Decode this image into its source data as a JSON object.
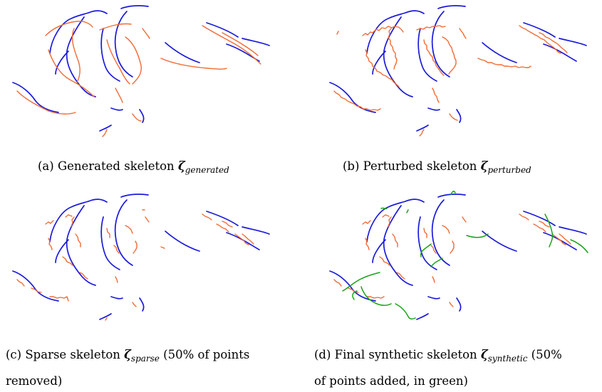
{
  "colors": {
    "reference_skeleton": "#1a1adb",
    "skeleton": "#f26a33",
    "added_points": "#1aa31a"
  },
  "panels": [
    {
      "id": "a",
      "caption_prefix": "(a) Generated skeleton ",
      "symbol": "ζ",
      "subscript": "generated",
      "caption_suffix": "",
      "caption_line2": ""
    },
    {
      "id": "b",
      "caption_prefix": "(b) Perturbed skeleton ",
      "symbol": "ζ",
      "subscript": "perturbed",
      "caption_suffix": "",
      "caption_line2": ""
    },
    {
      "id": "c",
      "caption_prefix": "(c) Sparse skeleton ",
      "symbol": "ζ",
      "subscript": "sparse",
      "caption_suffix": " (50% of points",
      "caption_line2": "removed)"
    },
    {
      "id": "d",
      "caption_prefix": "(d) Final synthetic skeleton ",
      "symbol": "ζ",
      "subscript": "synthetic",
      "caption_suffix": " (50%",
      "caption_line2": "of points added, in green)"
    }
  ]
}
